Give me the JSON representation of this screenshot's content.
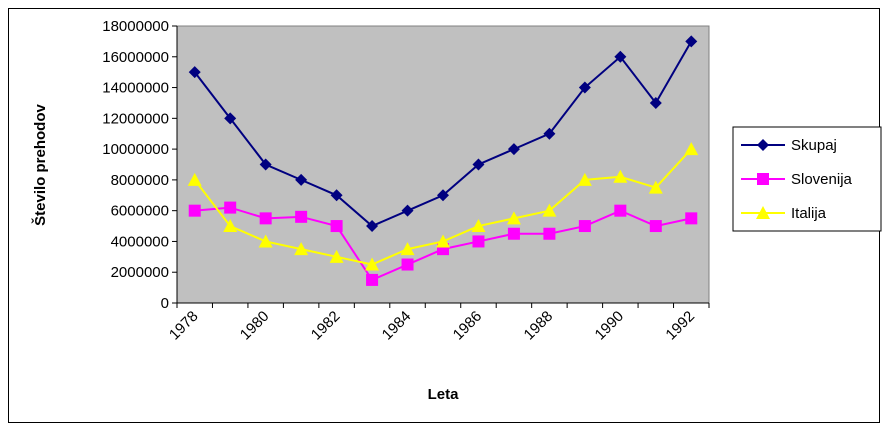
{
  "chart_data": {
    "type": "line",
    "xlabel": "Leta",
    "ylabel": "Število prehodov",
    "categories": [
      "1978",
      null,
      "1980",
      null,
      "1982",
      null,
      "1984",
      null,
      "1986",
      null,
      "1988",
      null,
      "1990",
      null,
      "1992"
    ],
    "series": [
      {
        "name": "Skupaj",
        "color": "#000080",
        "marker": "diamond",
        "values": [
          15000000,
          12000000,
          9000000,
          8000000,
          7000000,
          5000000,
          6000000,
          7000000,
          9000000,
          10000000,
          11000000,
          14000000,
          16000000,
          13000000,
          17000000
        ]
      },
      {
        "name": "Slovenija",
        "color": "#ff00ff",
        "marker": "square",
        "values": [
          6000000,
          6200000,
          5500000,
          5600000,
          5000000,
          1500000,
          2500000,
          3500000,
          4000000,
          4500000,
          4500000,
          5000000,
          6000000,
          5000000,
          5500000
        ]
      },
      {
        "name": "Italija",
        "color": "#ffff00",
        "marker": "triangle",
        "values": [
          8000000,
          5000000,
          4000000,
          3500000,
          3000000,
          2500000,
          3500000,
          4000000,
          5000000,
          5500000,
          6000000,
          8000000,
          8200000,
          7500000,
          10000000
        ]
      }
    ],
    "ylim": [
      0,
      18000000
    ],
    "yticks": [
      0,
      2000000,
      4000000,
      6000000,
      8000000,
      10000000,
      12000000,
      14000000,
      16000000,
      18000000
    ],
    "grid": false,
    "legend": "right",
    "plot_background": "#c0c0c0"
  }
}
